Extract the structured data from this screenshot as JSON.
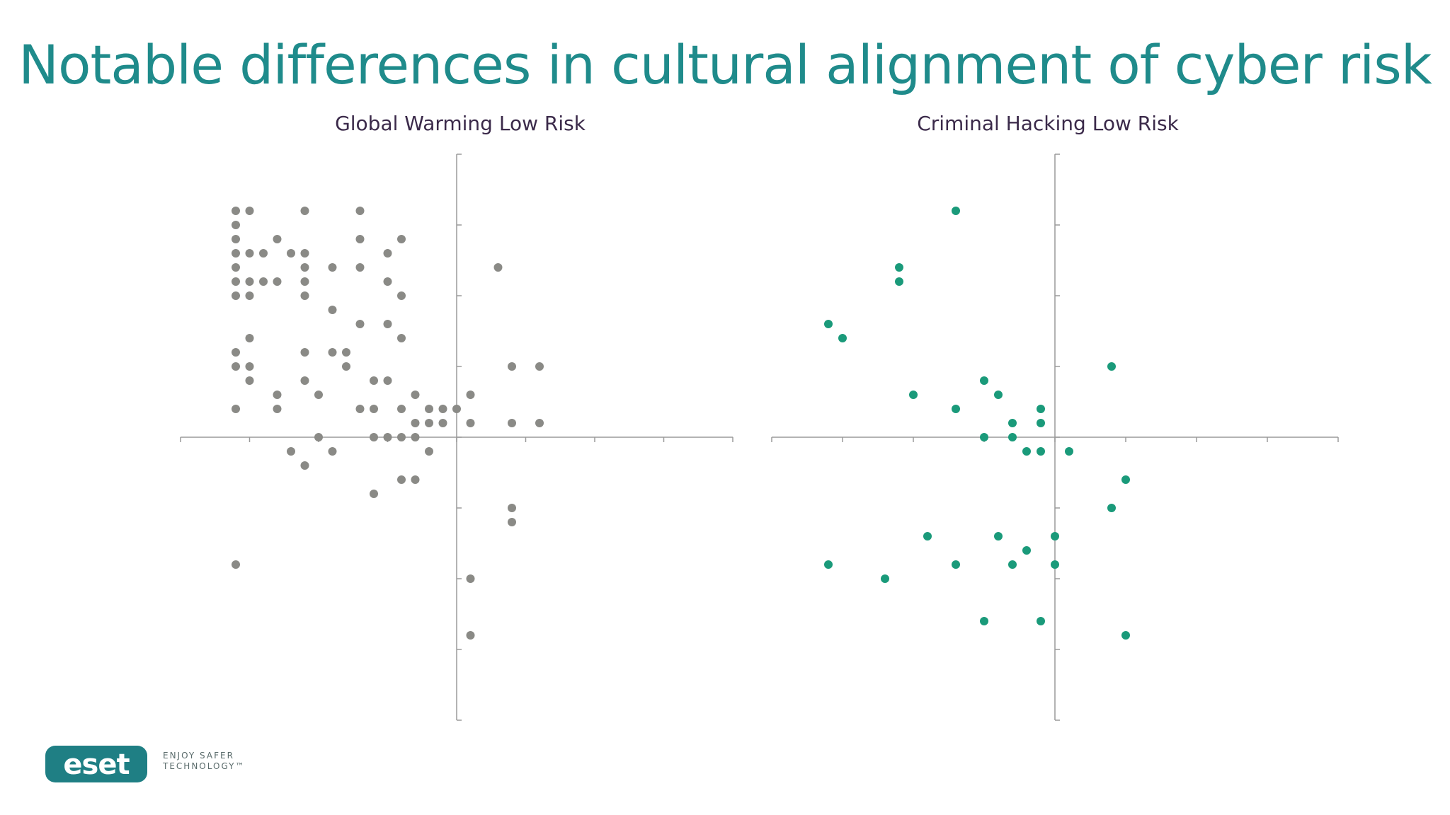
{
  "slide": {
    "title": "Notable differences in cultural alignment of cyber risk"
  },
  "logo": {
    "wordmark": "eset",
    "tagline_line1": "ENJOY SAFER",
    "tagline_line2": "TECHNOLOGY™",
    "color": "#1f7f84"
  },
  "chart_data": [
    {
      "type": "scatter",
      "title": "Global Warming Low Risk",
      "xlabel": "",
      "ylabel": "",
      "xlim": [
        -4,
        4
      ],
      "ylim": [
        -4,
        4
      ],
      "grid": false,
      "point_color": "#8a8a86",
      "points": [
        [
          -3.2,
          3.2
        ],
        [
          -3.0,
          3.2
        ],
        [
          -2.2,
          3.2
        ],
        [
          -1.4,
          3.2
        ],
        [
          -3.2,
          3.0
        ],
        [
          -3.2,
          2.8
        ],
        [
          -2.6,
          2.8
        ],
        [
          -1.4,
          2.8
        ],
        [
          -0.8,
          2.8
        ],
        [
          -3.2,
          2.6
        ],
        [
          -3.0,
          2.6
        ],
        [
          -2.8,
          2.6
        ],
        [
          -2.4,
          2.6
        ],
        [
          -2.2,
          2.6
        ],
        [
          -1.0,
          2.6
        ],
        [
          -3.2,
          2.4
        ],
        [
          -2.2,
          2.4
        ],
        [
          -1.8,
          2.4
        ],
        [
          -1.4,
          2.4
        ],
        [
          0.6,
          2.4
        ],
        [
          -3.2,
          2.2
        ],
        [
          -3.0,
          2.2
        ],
        [
          -2.8,
          2.2
        ],
        [
          -2.6,
          2.2
        ],
        [
          -2.2,
          2.2
        ],
        [
          -1.0,
          2.2
        ],
        [
          -3.2,
          2.0
        ],
        [
          -3.0,
          2.0
        ],
        [
          -2.2,
          2.0
        ],
        [
          -0.8,
          2.0
        ],
        [
          -1.8,
          1.8
        ],
        [
          -1.4,
          1.6
        ],
        [
          -1.0,
          1.6
        ],
        [
          -3.0,
          1.4
        ],
        [
          -0.8,
          1.4
        ],
        [
          -3.2,
          1.2
        ],
        [
          -2.2,
          1.2
        ],
        [
          -1.8,
          1.2
        ],
        [
          -1.6,
          1.2
        ],
        [
          -3.2,
          1.0
        ],
        [
          -3.0,
          1.0
        ],
        [
          -1.6,
          1.0
        ],
        [
          0.8,
          1.0
        ],
        [
          1.2,
          1.0
        ],
        [
          -3.0,
          0.8
        ],
        [
          -2.2,
          0.8
        ],
        [
          -1.2,
          0.8
        ],
        [
          -1.0,
          0.8
        ],
        [
          -2.6,
          0.6
        ],
        [
          -2.0,
          0.6
        ],
        [
          -0.6,
          0.6
        ],
        [
          0.2,
          0.6
        ],
        [
          -3.2,
          0.4
        ],
        [
          -2.6,
          0.4
        ],
        [
          -1.4,
          0.4
        ],
        [
          -1.2,
          0.4
        ],
        [
          -0.8,
          0.4
        ],
        [
          -0.4,
          0.4
        ],
        [
          -0.2,
          0.4
        ],
        [
          0.0,
          0.4
        ],
        [
          -0.6,
          0.2
        ],
        [
          -0.4,
          0.2
        ],
        [
          -0.2,
          0.2
        ],
        [
          0.2,
          0.2
        ],
        [
          0.8,
          0.2
        ],
        [
          1.2,
          0.2
        ],
        [
          -2.0,
          0.0
        ],
        [
          -1.2,
          0.0
        ],
        [
          -1.0,
          0.0
        ],
        [
          -0.8,
          0.0
        ],
        [
          -0.6,
          0.0
        ],
        [
          -2.4,
          -0.2
        ],
        [
          -1.8,
          -0.2
        ],
        [
          -0.4,
          -0.2
        ],
        [
          -2.2,
          -0.4
        ],
        [
          -0.8,
          -0.6
        ],
        [
          -0.6,
          -0.6
        ],
        [
          -1.2,
          -0.8
        ],
        [
          0.8,
          -1.0
        ],
        [
          0.8,
          -1.2
        ],
        [
          -3.2,
          -1.8
        ],
        [
          0.2,
          -2.0
        ],
        [
          0.2,
          -2.8
        ]
      ]
    },
    {
      "type": "scatter",
      "title": "Criminal Hacking Low Risk",
      "xlabel": "",
      "ylabel": "",
      "xlim": [
        -4,
        4
      ],
      "ylim": [
        -4,
        4
      ],
      "grid": false,
      "point_color": "#1a9a7a",
      "points": [
        [
          -1.4,
          3.2
        ],
        [
          -2.2,
          2.4
        ],
        [
          -2.2,
          2.2
        ],
        [
          -3.2,
          1.6
        ],
        [
          -3.0,
          1.4
        ],
        [
          0.8,
          1.0
        ],
        [
          -1.0,
          0.8
        ],
        [
          -2.0,
          0.6
        ],
        [
          -0.8,
          0.6
        ],
        [
          -1.4,
          0.4
        ],
        [
          -0.2,
          0.4
        ],
        [
          -0.6,
          0.2
        ],
        [
          -0.2,
          0.2
        ],
        [
          -1.0,
          0.0
        ],
        [
          -0.6,
          0.0
        ],
        [
          -0.4,
          -0.2
        ],
        [
          -0.2,
          -0.2
        ],
        [
          0.2,
          -0.2
        ],
        [
          1.0,
          -0.6
        ],
        [
          0.8,
          -1.0
        ],
        [
          -1.8,
          -1.4
        ],
        [
          -0.8,
          -1.4
        ],
        [
          0.0,
          -1.4
        ],
        [
          -0.4,
          -1.6
        ],
        [
          -3.2,
          -1.8
        ],
        [
          -1.4,
          -1.8
        ],
        [
          -0.6,
          -1.8
        ],
        [
          0.0,
          -1.8
        ],
        [
          -2.4,
          -2.0
        ],
        [
          -1.0,
          -2.6
        ],
        [
          -0.2,
          -2.6
        ],
        [
          1.0,
          -2.8
        ]
      ]
    }
  ]
}
